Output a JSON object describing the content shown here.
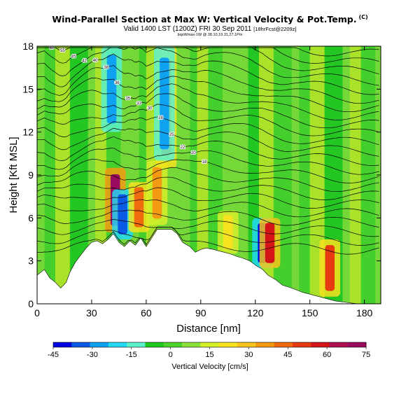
{
  "header": {
    "title": "Wind-Parallel Section at Max W: Vertical Velocity & Pot.Temp.",
    "copyright": "(C)",
    "valid_text": "Valid 1400 LST (1200Z) FRI 30 Sep 2011",
    "forecast_text": "[18hrFcst@2209z]",
    "credit_text": "bqxWmax-1W @ 38.10,19.31,27.1Pm"
  },
  "chart_data": {
    "type": "heatmap",
    "title": "Wind-Parallel Section at Max W: Vertical Velocity & Pot.Temp.",
    "xlabel": "Distance [nm]",
    "ylabel": "Height [Kft MSL]",
    "xlim": [
      0,
      189
    ],
    "ylim": [
      0,
      18
    ],
    "x_ticks": [
      0,
      30,
      60,
      90,
      120,
      150,
      180
    ],
    "y_ticks": [
      0,
      3,
      6,
      9,
      12,
      15,
      18
    ],
    "colorbar": {
      "title": "Vertical Velocity [cm/s]",
      "tick_values": [
        -45,
        -30,
        -15,
        0,
        15,
        30,
        45,
        60,
        75
      ],
      "colors": [
        "#0000e0",
        "#0a5ae6",
        "#0ea2f0",
        "#22d8f2",
        "#5cf0cc",
        "#20c820",
        "#4cd42c",
        "#8ce03c",
        "#d4ee2a",
        "#f6e21e",
        "#f6c41a",
        "#f49a12",
        "#f06a10",
        "#e83a10",
        "#d41418",
        "#b01050",
        "#9a0a5e"
      ]
    },
    "terrain_nm_kft": [
      [
        0,
        2.0
      ],
      [
        4,
        2.4
      ],
      [
        7,
        1.8
      ],
      [
        10,
        1.5
      ],
      [
        13,
        1.1
      ],
      [
        16,
        1.5
      ],
      [
        18,
        2.2
      ],
      [
        21,
        2.9
      ],
      [
        24,
        3.4
      ],
      [
        27,
        3.9
      ],
      [
        30,
        4.3
      ],
      [
        33,
        4.4
      ],
      [
        36,
        4.2
      ],
      [
        39,
        4.5
      ],
      [
        42,
        4.9
      ],
      [
        45,
        4.3
      ],
      [
        48,
        4.0
      ],
      [
        51,
        4.4
      ],
      [
        54,
        4.1
      ],
      [
        57,
        4.6
      ],
      [
        60,
        4.0
      ],
      [
        63,
        4.6
      ],
      [
        66,
        5.2
      ],
      [
        70,
        5.2
      ],
      [
        74,
        5.2
      ],
      [
        77,
        4.9
      ],
      [
        80,
        4.3
      ],
      [
        84,
        4.0
      ],
      [
        87,
        3.6
      ],
      [
        90,
        3.8
      ],
      [
        93,
        3.9
      ],
      [
        97,
        3.8
      ],
      [
        100,
        3.7
      ],
      [
        103,
        3.6
      ],
      [
        106,
        3.5
      ],
      [
        110,
        3.3
      ],
      [
        113,
        3.2
      ],
      [
        117,
        3.0
      ],
      [
        120,
        2.7
      ],
      [
        124,
        2.4
      ],
      [
        127,
        2.0
      ],
      [
        131,
        1.7
      ],
      [
        135,
        1.3
      ],
      [
        140,
        1.1
      ],
      [
        146,
        0.8
      ],
      [
        152,
        0.6
      ],
      [
        158,
        0.4
      ],
      [
        164,
        0.2
      ],
      [
        170,
        0.1
      ],
      [
        176,
        0.0
      ],
      [
        189,
        0.0
      ]
    ],
    "vertical_velocity_features": [
      {
        "x": 43,
        "z_bottom": 5.0,
        "z_top": 9.5,
        "value": 75
      },
      {
        "x": 47,
        "z_bottom": 4.5,
        "z_top": 8.0,
        "value": -35
      },
      {
        "x": 56,
        "z_bottom": 5.0,
        "z_top": 8.5,
        "value": 40
      },
      {
        "x": 66,
        "z_bottom": 5.5,
        "z_top": 10.0,
        "value": 35
      },
      {
        "x": 71,
        "z_bottom": 9.5,
        "z_top": 18.0,
        "value": 45
      },
      {
        "x": 70,
        "z_bottom": 10.0,
        "z_top": 18.0,
        "value": -30
      },
      {
        "x": 41,
        "z_bottom": 12.0,
        "z_top": 18.0,
        "value": -25
      },
      {
        "x": 124,
        "z_bottom": 2.5,
        "z_top": 6.0,
        "value": -45
      },
      {
        "x": 128,
        "z_bottom": 2.5,
        "z_top": 6.0,
        "value": 55
      },
      {
        "x": 161,
        "z_bottom": 0.5,
        "z_top": 4.5,
        "value": 50
      },
      {
        "x": 105,
        "z_bottom": 3.5,
        "z_top": 6.5,
        "value": 25
      }
    ],
    "potential_temperature_contours": {
      "count": 23,
      "label_values": [
        "60",
        "55",
        "45",
        "42",
        "40",
        "38",
        "36",
        "35",
        "33",
        "30",
        "28",
        "25",
        "22",
        "20",
        "18"
      ]
    }
  }
}
